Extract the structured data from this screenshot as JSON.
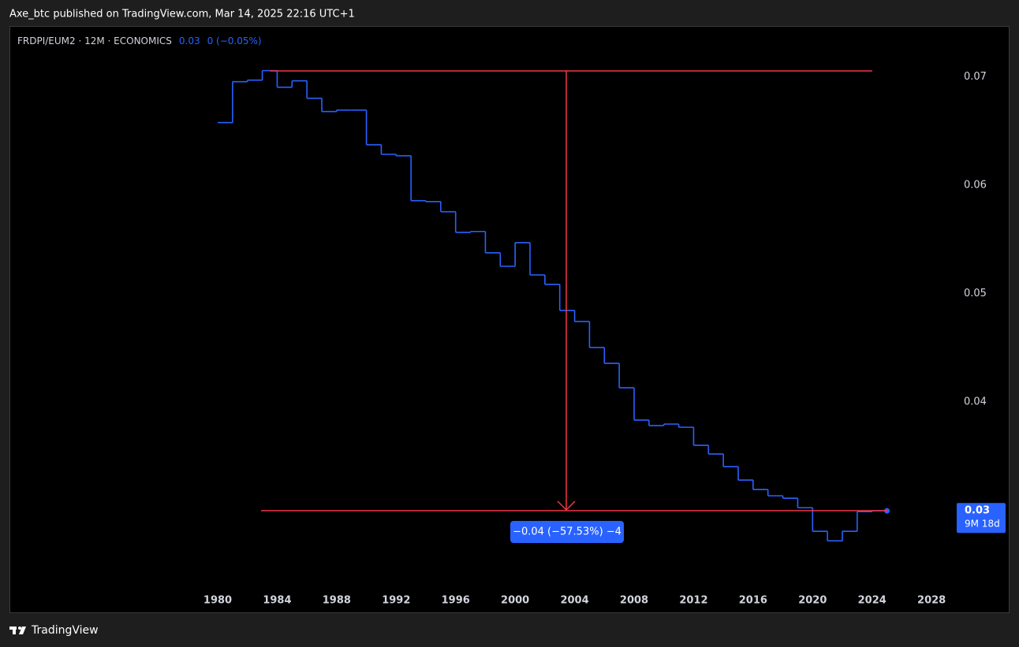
{
  "header": {
    "text": "Axe_btc published on TradingView.com, Mar 14, 2025 22:16 UTC+1"
  },
  "footer": {
    "brand": "TradingView"
  },
  "chart_data": {
    "type": "line",
    "step": true,
    "title": "FRDPI/EUM2 · 12M · ECONOMICS",
    "legend_value": "0.03",
    "legend_change": "0  (−0.05%)",
    "color": "#2962ff",
    "x": [
      1980,
      1981,
      1982,
      1983,
      1984,
      1985,
      1986,
      1987,
      1988,
      1989,
      1990,
      1991,
      1992,
      1993,
      1994,
      1995,
      1996,
      1997,
      1998,
      1999,
      2000,
      2001,
      2002,
      2003,
      2004,
      2005,
      2006,
      2007,
      2008,
      2009,
      2010,
      2011,
      2012,
      2013,
      2014,
      2015,
      2016,
      2017,
      2018,
      2019,
      2020,
      2021,
      2022,
      2023,
      2024
    ],
    "values": [
      0.06578,
      0.06956,
      0.0697,
      0.07058,
      0.06905,
      0.06964,
      0.06803,
      0.0668,
      0.06694,
      0.06694,
      0.06374,
      0.06286,
      0.06272,
      0.05857,
      0.05849,
      0.05755,
      0.05565,
      0.05573,
      0.05376,
      0.05252,
      0.0547,
      0.05172,
      0.05085,
      0.04844,
      0.04742,
      0.04502,
      0.04356,
      0.0413,
      0.03832,
      0.03781,
      0.03795,
      0.03766,
      0.03599,
      0.03519,
      0.03402,
      0.03278,
      0.03191,
      0.03133,
      0.03111,
      0.03023,
      0.02805,
      0.02717,
      0.02805,
      0.02987,
      0.02994
    ],
    "xlim": [
      1966,
      2029
    ],
    "xticks": [
      1980,
      1984,
      1988,
      1992,
      1996,
      2000,
      2004,
      2008,
      2012,
      2016,
      2020,
      2024,
      2028
    ],
    "ylim": [
      0.0229,
      0.0747
    ],
    "yticks": [
      0.04,
      0.05,
      0.06,
      0.07
    ],
    "annotations": {
      "measure_label": "−0.04 (−57.53%) −4",
      "last_price_label": "0.03",
      "countdown": "9M 18d"
    }
  }
}
